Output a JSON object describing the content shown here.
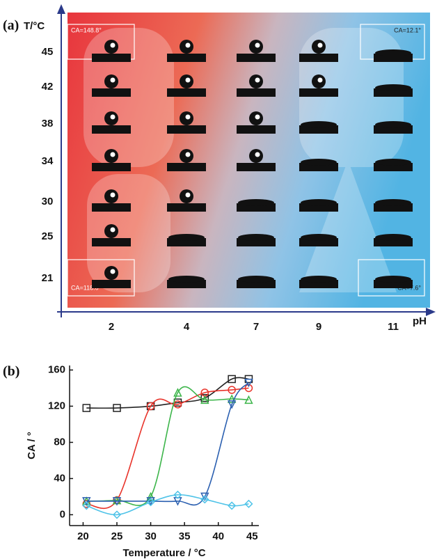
{
  "panel_a": {
    "label": "(a)",
    "y_axis_label": "T/°C",
    "x_axis_label": "pH",
    "temperatures": [
      45,
      42,
      38,
      34,
      30,
      25,
      21
    ],
    "ph_values": [
      2,
      4,
      7,
      9,
      11
    ],
    "annotations": [
      "CA=148.8°",
      "CA=12.1°",
      "CA=118.0°",
      "CA=7.6°"
    ]
  },
  "chart_data": {
    "type": "line",
    "panel_label": "(b)",
    "xlabel": "Temperature / °C",
    "ylabel": "CA / °",
    "x": [
      20.5,
      25,
      30,
      34,
      38,
      42,
      44.5
    ],
    "series": [
      {
        "color": "#222222",
        "marker": "square",
        "values": [
          118,
          118,
          120,
          124,
          129,
          150,
          150
        ]
      },
      {
        "color": "#e8332a",
        "marker": "circle",
        "values": [
          12,
          16,
          120,
          122,
          135,
          138,
          140
        ]
      },
      {
        "color": "#3cb54a",
        "marker": "triangle-up",
        "values": [
          15,
          16,
          20,
          135,
          127,
          128,
          127
        ]
      },
      {
        "color": "#2a5fb0",
        "marker": "triangle-down",
        "values": [
          15,
          15,
          15,
          15,
          20,
          122,
          146
        ]
      },
      {
        "color": "#4fc3e8",
        "marker": "diamond",
        "values": [
          10,
          0,
          14,
          22,
          17,
          10,
          12
        ]
      }
    ],
    "xlim": [
      18,
      46
    ],
    "ylim": [
      -12,
      165
    ],
    "xticks": [
      20,
      25,
      30,
      35,
      40,
      45
    ],
    "yticks": [
      0,
      40,
      80,
      120,
      160
    ]
  }
}
